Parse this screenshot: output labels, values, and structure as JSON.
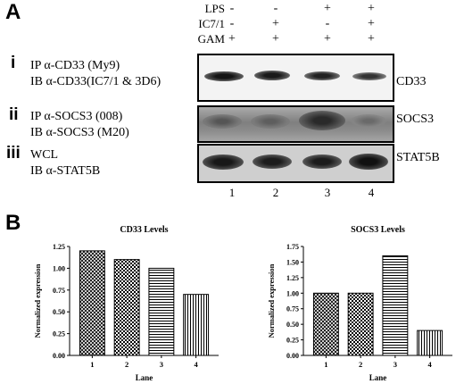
{
  "panel_a": {
    "letter": "A",
    "conditions": [
      {
        "label": "LPS",
        "signs": [
          "-",
          "-",
          "+",
          "+"
        ]
      },
      {
        "label": "IC7/1",
        "signs": [
          "-",
          "+",
          "-",
          "+"
        ]
      },
      {
        "label": "GAM",
        "signs": [
          "+",
          "+",
          "+",
          "+"
        ]
      }
    ],
    "blots": [
      {
        "roman": "i",
        "line1": "IP α-CD33 (My9)",
        "line2": "IB α-CD33(IC7/1 & 3D6)",
        "protein": "CD33"
      },
      {
        "roman": "ii",
        "line1": "IP α-SOCS3 (008)",
        "line2": "IB α-SOCS3 (M20)",
        "protein": "SOCS3"
      },
      {
        "roman": "iii",
        "line1": "WCL",
        "line2": "IB α-STAT5B",
        "protein": "STAT5B"
      }
    ],
    "lanes": [
      "1",
      "2",
      "3",
      "4"
    ]
  },
  "panel_b": {
    "letter": "B"
  },
  "chart_data": [
    {
      "type": "bar",
      "title": "CD33 Levels",
      "xlabel": "Lane",
      "ylabel": "Normalized expression",
      "categories": [
        "1",
        "2",
        "3",
        "4"
      ],
      "values": [
        1.2,
        1.1,
        1.0,
        0.7
      ],
      "ylim": [
        0,
        1.25
      ],
      "yticks": [
        "0.00",
        "0.25",
        "0.50",
        "0.75",
        "1.00",
        "1.25"
      ],
      "patterns": [
        "crosshatch",
        "checker",
        "hlines",
        "vlines"
      ]
    },
    {
      "type": "bar",
      "title": "SOCS3 Levels",
      "xlabel": "Lane",
      "ylabel": "Normalized expression",
      "categories": [
        "1",
        "2",
        "3",
        "4"
      ],
      "values": [
        1.0,
        1.0,
        1.6,
        0.4
      ],
      "ylim": [
        0,
        1.75
      ],
      "yticks": [
        "0.00",
        "0.25",
        "0.50",
        "0.75",
        "1.00",
        "1.25",
        "1.50",
        "1.75"
      ],
      "patterns": [
        "crosshatch",
        "checker",
        "hlines",
        "vlines"
      ]
    }
  ]
}
